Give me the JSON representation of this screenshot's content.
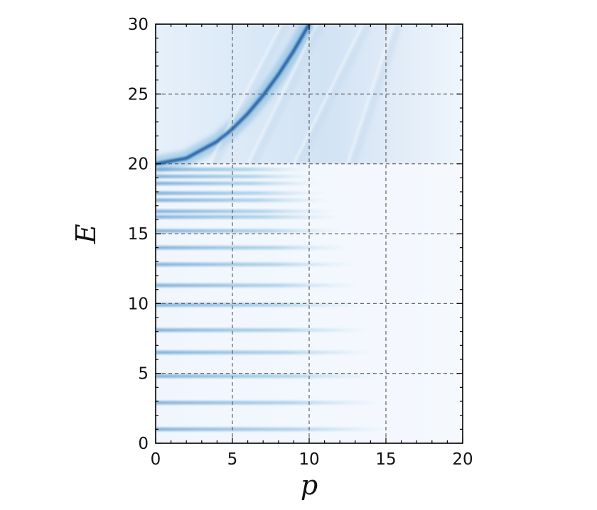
{
  "chart_data": {
    "type": "heatmap",
    "title": "",
    "xlabel": "p",
    "ylabel": "E",
    "xlim": [
      0,
      20
    ],
    "ylim": [
      0,
      30
    ],
    "xticks": [
      "0",
      "5",
      "10",
      "15",
      "20"
    ],
    "yticks": [
      "0",
      "5",
      "10",
      "15",
      "20",
      "25",
      "30"
    ],
    "grid": true,
    "colormap": "Blues",
    "continuum_threshold_E": 20,
    "bound_state_levels_E": [
      1.0,
      2.9,
      4.8,
      6.5,
      8.1,
      9.9,
      11.3,
      12.8,
      14.0,
      15.2,
      16.2,
      16.6,
      17.4,
      17.9,
      18.6,
      19.1,
      19.6
    ],
    "dispersion_curve": {
      "description": "E = 20 + 0.1 p^2",
      "points": [
        [
          0,
          20.0
        ],
        [
          2,
          20.4
        ],
        [
          4,
          21.6
        ],
        [
          5,
          22.5
        ],
        [
          6,
          23.6
        ],
        [
          7,
          24.9
        ],
        [
          8,
          26.4
        ],
        [
          9,
          28.1
        ],
        [
          10,
          30.0
        ]
      ]
    },
    "colors": {
      "strong": "#08519c",
      "mid": "#6baed6",
      "light": "#c6dbef",
      "background": "#f2f7fd",
      "grid": "#555555"
    }
  }
}
